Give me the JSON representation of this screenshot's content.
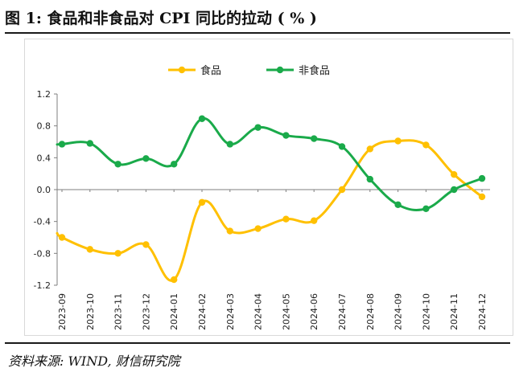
{
  "title": "图 1:  食品和非食品对 CPI 同比的拉动 ( % )",
  "source": "资料来源: WIND, 财信研究院",
  "chart_data": {
    "type": "line",
    "categories": [
      "2023-09",
      "2023-10",
      "2023-11",
      "2023-12",
      "2024-01",
      "2024-02",
      "2024-03",
      "2024-04",
      "2024-05",
      "2024-06",
      "2024-07",
      "2024-08",
      "2024-09",
      "2024-10",
      "2024-11",
      "2024-12"
    ],
    "series": [
      {
        "name": "食品",
        "color": "#FFC000",
        "values": [
          -0.6,
          -0.75,
          -0.8,
          -0.69,
          -1.13,
          -0.16,
          -0.52,
          -0.49,
          -0.37,
          -0.39,
          0.0,
          0.51,
          0.61,
          0.56,
          0.19,
          -0.09
        ]
      },
      {
        "name": "非食品",
        "color": "#1AAA4A",
        "values": [
          0.57,
          0.58,
          0.32,
          0.39,
          0.32,
          0.89,
          0.57,
          0.78,
          0.68,
          0.64,
          0.54,
          0.13,
          -0.19,
          -0.24,
          0.0,
          0.14
        ]
      }
    ],
    "y_ticks": [
      "1.2",
      "0.8",
      "0.4",
      "0.0",
      "-0.4",
      "-0.8",
      "-1.2"
    ],
    "ylim": [
      -1.2,
      1.2
    ],
    "legend_position": "top-center",
    "grid": false
  }
}
